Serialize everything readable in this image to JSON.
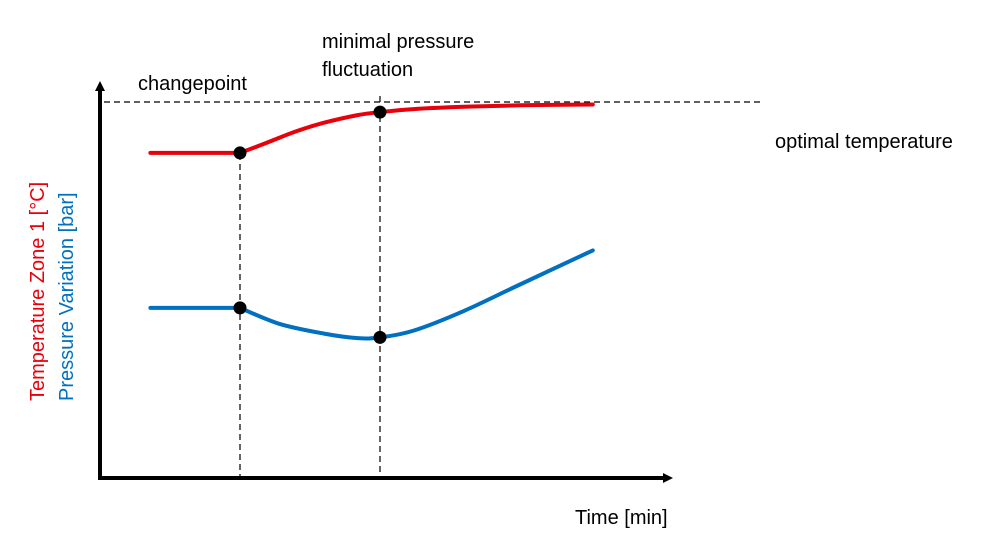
{
  "chart_data": {
    "type": "line",
    "title": "",
    "xlabel": "Time [min]",
    "ylabel": [
      {
        "text": "Temperature  Zone 1 [°C]",
        "color": "#e8000b"
      },
      {
        "text": "Pressure Variation [bar]",
        "color": "#0070c0"
      }
    ],
    "xlim": [
      0,
      10
    ],
    "ylim": [
      0,
      10
    ],
    "grid": false,
    "series": [
      {
        "name": "Temperature Zone 1",
        "color": "#e8000b",
        "x": [
          0.9,
          2.5,
          3.0,
          3.5,
          4.0,
          4.6,
          5.0,
          5.6,
          6.5,
          7.5,
          8.8
        ],
        "y": [
          8.6,
          8.6,
          8.88,
          9.17,
          9.4,
          9.6,
          9.68,
          9.76,
          9.82,
          9.86,
          9.88
        ]
      },
      {
        "name": "Pressure Variation",
        "color": "#0070c0",
        "x": [
          0.9,
          2.5,
          3.2,
          4.0,
          4.6,
          5.0,
          5.6,
          6.5,
          7.5,
          8.8
        ],
        "y": [
          4.5,
          4.5,
          4.08,
          3.82,
          3.7,
          3.72,
          3.9,
          4.42,
          5.12,
          6.02
        ]
      }
    ],
    "markers": [
      {
        "x": 2.5,
        "y": 8.6
      },
      {
        "x": 5.0,
        "y": 9.68
      },
      {
        "x": 2.5,
        "y": 4.5
      },
      {
        "x": 5.0,
        "y": 3.72
      }
    ],
    "reference_lines": {
      "vertical": [
        {
          "x": 2.5,
          "label": [
            "changepoint"
          ]
        },
        {
          "x": 5.0,
          "label": [
            "minimal pressure",
            "fluctuation"
          ]
        }
      ],
      "horizontal": [
        {
          "y": 10.0,
          "label": "optimal temperature"
        }
      ]
    }
  }
}
